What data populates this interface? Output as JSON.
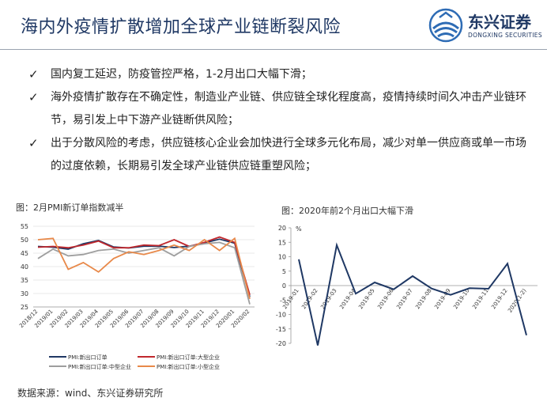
{
  "header": {
    "title": "海内外疫情扩散增加全球产业链断裂风险",
    "logo_cn": "东兴证券",
    "logo_en": "DONGXING SECURITIES"
  },
  "bullets": [
    "国内复工延迟，防疫管控严格，1-2月出口大幅下滑；",
    "海外疫情扩散存在不确定性，制造业产业链、供应链全球化程度高，疫情持续时间久冲击产业链环节，易引发上中下游产业链断供风险；",
    "出于分散风险的考虑，供应链核心企业会加快进行全球多元化布局，减少对单一供应商或单一市场的过度依赖，长期易引发全球产业链供应链重塑风险；"
  ],
  "check_symbol": "✓",
  "source": "数据来源：wind、东兴证券研究所",
  "chart_data": [
    {
      "type": "line",
      "title": "图：2月PMI新订单指数减半",
      "x": [
        "2018/12",
        "2019/01",
        "2019/02",
        "2019/03",
        "2019/04",
        "2019/05",
        "2019/06",
        "2019/07",
        "2019/08",
        "2019/09",
        "2019/10",
        "2019/11",
        "2019/12",
        "2020/01",
        "2020/02"
      ],
      "ylim": [
        25,
        55
      ],
      "yticks": [
        25,
        30,
        35,
        40,
        45,
        50,
        55
      ],
      "grid": true,
      "legend": "bottom",
      "series": [
        {
          "name": "PMI:新出口订单",
          "color": "#1f3864",
          "values": [
            47.5,
            47.2,
            46.5,
            48.5,
            49.7,
            47.3,
            46.9,
            47.6,
            47.6,
            47.1,
            47.6,
            48.8,
            50.2,
            48.7,
            28.7
          ]
        },
        {
          "name": "PMI:新出口订单:大型企业",
          "color": "#c0282d",
          "values": [
            47.2,
            47.5,
            47.0,
            48.0,
            49.5,
            47.0,
            47.0,
            48.0,
            47.8,
            50.0,
            47.5,
            49.0,
            51.0,
            49.0,
            29.5
          ]
        },
        {
          "name": "PMI:新出口订单:中型企业",
          "color": "#9e9e9e",
          "values": [
            43.0,
            46.5,
            44.0,
            44.5,
            46.0,
            46.5,
            45.0,
            46.0,
            47.0,
            44.0,
            47.5,
            48.5,
            49.0,
            47.0,
            26.0
          ]
        },
        {
          "name": "PMI:新出口订单:小型企业",
          "color": "#e8894a",
          "values": [
            50.0,
            50.5,
            39.0,
            41.5,
            38.0,
            43.0,
            45.5,
            44.5,
            46.0,
            48.0,
            46.0,
            50.0,
            46.0,
            50.5,
            28.0
          ]
        }
      ]
    },
    {
      "type": "line",
      "title": "图：2020年前2个月出口大幅下滑",
      "ylabel": "%",
      "x": [
        "2019-01",
        "2019-02",
        "2019-03",
        "2019-04",
        "2019-05",
        "2019-06",
        "2019-07",
        "2019-08",
        "2019-09",
        "2019-10",
        "2019-11",
        "2019-12",
        "2020(1-2)"
      ],
      "ylim": [
        -20,
        20
      ],
      "yticks": [
        -20,
        -15,
        -10,
        -5,
        0,
        5,
        10,
        15,
        20
      ],
      "series": [
        {
          "name": "",
          "color": "#1f3864",
          "values": [
            9.1,
            -20.7,
            14.0,
            -2.8,
            1.1,
            -1.3,
            3.3,
            -1.0,
            -3.2,
            -0.9,
            -1.1,
            7.6,
            -17.2
          ]
        }
      ]
    }
  ]
}
